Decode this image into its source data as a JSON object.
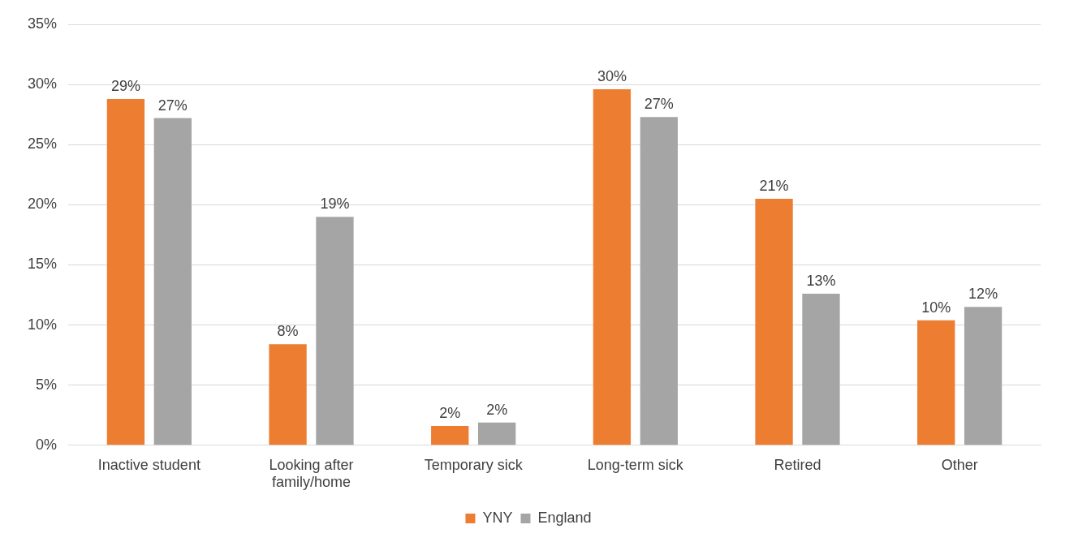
{
  "chart_data": {
    "type": "bar",
    "categories": [
      "Inactive student",
      "Looking after family/home",
      "Temporary sick",
      "Long-term sick",
      "Retired",
      "Other"
    ],
    "series": [
      {
        "name": "YNY",
        "color": "#ed7d31",
        "values": [
          28.8,
          8.4,
          1.6,
          29.6,
          20.5,
          10.4
        ],
        "value_labels": [
          "29%",
          "8%",
          "2%",
          "30%",
          "21%",
          "10%"
        ]
      },
      {
        "name": "England",
        "color": "#a5a5a5",
        "values": [
          27.2,
          19.0,
          1.9,
          27.3,
          12.6,
          11.5
        ],
        "value_labels": [
          "27%",
          "19%",
          "2%",
          "27%",
          "13%",
          "12%"
        ]
      }
    ],
    "ylim": [
      0,
      35
    ],
    "yticks": [
      {
        "value": 0,
        "label": "0%"
      },
      {
        "value": 5,
        "label": "5%"
      },
      {
        "value": 10,
        "label": "10%"
      },
      {
        "value": 15,
        "label": "15%"
      },
      {
        "value": 20,
        "label": "20%"
      },
      {
        "value": 25,
        "label": "25%"
      },
      {
        "value": 30,
        "label": "30%"
      },
      {
        "value": 35,
        "label": "35%"
      }
    ],
    "grid": "y",
    "legend": "bottom"
  }
}
